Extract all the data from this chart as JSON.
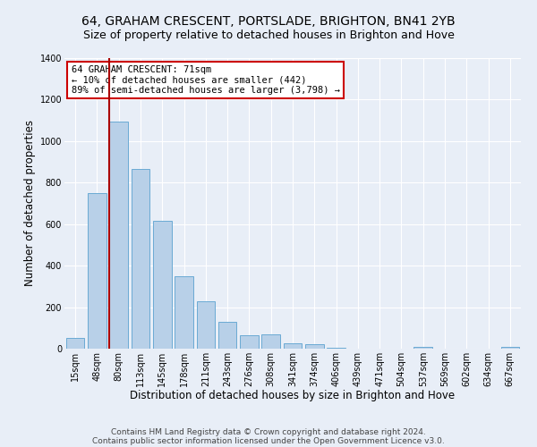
{
  "title": "64, GRAHAM CRESCENT, PORTSLADE, BRIGHTON, BN41 2YB",
  "subtitle": "Size of property relative to detached houses in Brighton and Hove",
  "xlabel": "Distribution of detached houses by size in Brighton and Hove",
  "ylabel": "Number of detached properties",
  "footnote1": "Contains HM Land Registry data © Crown copyright and database right 2024.",
  "footnote2": "Contains public sector information licensed under the Open Government Licence v3.0.",
  "bar_labels": [
    "15sqm",
    "48sqm",
    "80sqm",
    "113sqm",
    "145sqm",
    "178sqm",
    "211sqm",
    "243sqm",
    "276sqm",
    "308sqm",
    "341sqm",
    "374sqm",
    "406sqm",
    "439sqm",
    "471sqm",
    "504sqm",
    "537sqm",
    "569sqm",
    "602sqm",
    "634sqm",
    "667sqm"
  ],
  "bar_values": [
    50,
    750,
    1095,
    868,
    615,
    348,
    228,
    130,
    65,
    70,
    25,
    20,
    5,
    0,
    0,
    0,
    8,
    0,
    0,
    0,
    8
  ],
  "bar_color": "#b8d0e8",
  "bar_edgecolor": "#6aaad4",
  "bg_color": "#e8eef7",
  "plot_bg_color": "#e8eef7",
  "grid_color": "#ffffff",
  "red_line_index": 2,
  "annotation_title": "64 GRAHAM CRESCENT: 71sqm",
  "annotation_line1": "← 10% of detached houses are smaller (442)",
  "annotation_line2": "89% of semi-detached houses are larger (3,798) →",
  "annotation_box_color": "#ffffff",
  "annotation_box_edgecolor": "#cc0000",
  "red_line_color": "#aa0000",
  "ylim": [
    0,
    1400
  ],
  "title_fontsize": 10,
  "subtitle_fontsize": 9,
  "xlabel_fontsize": 8.5,
  "ylabel_fontsize": 8.5,
  "tick_fontsize": 7,
  "annotation_fontsize": 7.5,
  "footnote_fontsize": 6.5
}
